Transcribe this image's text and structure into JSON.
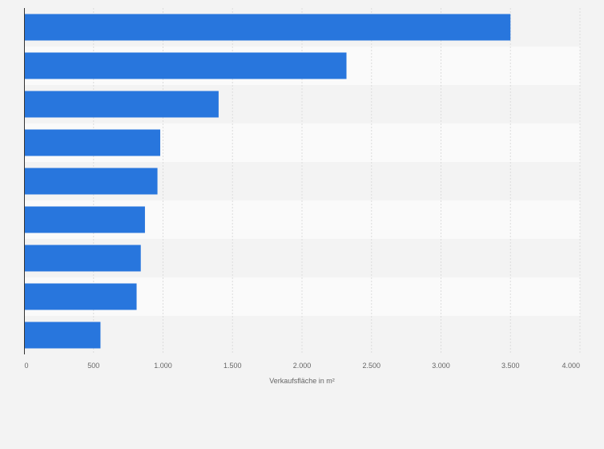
{
  "chart_data": {
    "type": "bar",
    "orientation": "horizontal",
    "categories": [
      "",
      "",
      "",
      "",
      "",
      "",
      "",
      "",
      ""
    ],
    "values": [
      3500,
      2320,
      1400,
      980,
      960,
      870,
      840,
      810,
      550
    ],
    "xlabel": "Verkaufsfläche in m²",
    "ylabel": "",
    "xlim": [
      0,
      4000
    ],
    "x_ticks": [
      0,
      500,
      1000,
      1500,
      2000,
      2500,
      3000,
      3500,
      4000
    ],
    "x_tick_labels": [
      "0",
      "500",
      "1.000",
      "1.500",
      "2.000",
      "2.500",
      "3.000",
      "3.500",
      "4.000"
    ],
    "grid": true,
    "legend": "none",
    "colors": {
      "bar": "#2876dd",
      "background": "#f3f3f3",
      "band_light": "#fafafa",
      "band_dark": "#f3f3f3",
      "grid": "#dcdcdc",
      "axis": "#333333",
      "text": "#666666"
    }
  }
}
